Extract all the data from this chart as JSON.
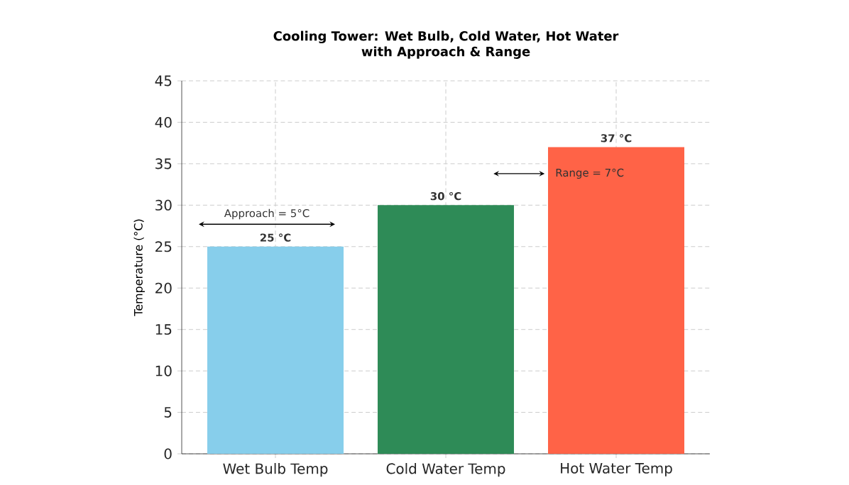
{
  "chart_data": {
    "type": "bar",
    "title": "Cooling Tower: Wet Bulb, Cold Water, Hot Water\nwith Approach & Range",
    "ylabel": "Temperature (°C)",
    "categories": [
      "Wet Bulb Temp",
      "Cold Water Temp",
      "Hot Water Temp"
    ],
    "values": [
      25,
      30,
      37
    ],
    "colors": [
      "#87ceeb",
      "#2e8b57",
      "#ff6347"
    ],
    "value_labels": [
      "25 °C",
      "30 °C",
      "37 °C"
    ],
    "ylim": [
      0,
      45
    ],
    "yticks": [
      0,
      5,
      10,
      15,
      20,
      25,
      30,
      35,
      40,
      45
    ],
    "grid": true,
    "annotations": [
      "Approach = 5°C",
      "Range = 7°C"
    ]
  }
}
